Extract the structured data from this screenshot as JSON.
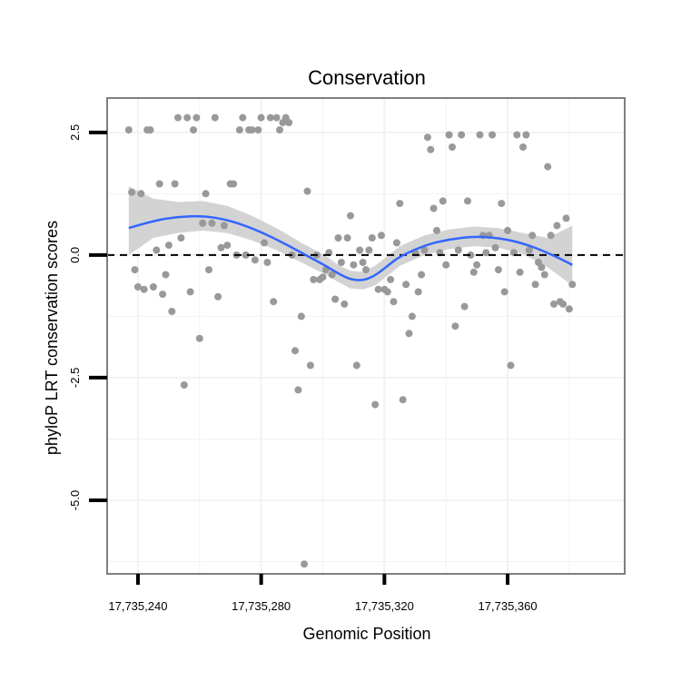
{
  "chart_data": {
    "type": "scatter",
    "title": "Conservation",
    "xlabel": "Genomic Position",
    "ylabel": "phyloP LRT conservation scores",
    "xlim": [
      17735230,
      17735398
    ],
    "ylim": [
      -6.5,
      3.2
    ],
    "x_ticks": [
      17735240,
      17735280,
      17735320,
      17735360
    ],
    "x_tick_labels": [
      "17,735,240",
      "17,735,280",
      "17,735,320",
      "17,735,360"
    ],
    "y_ticks": [
      2.5,
      0.0,
      -2.5,
      -5.0
    ],
    "y_tick_labels": [
      "2.5",
      "0.0",
      "-2.5",
      "-5.0"
    ],
    "reference_line_y": 0,
    "colors": {
      "points": "#999999",
      "smooth": "#3366ff",
      "band": "#d3d3d3",
      "panel_border": "#7f7f7f",
      "grid": "#f2f2f2"
    },
    "points": [
      {
        "x": 17735237,
        "y": 2.55
      },
      {
        "x": 17735238,
        "y": 1.28
      },
      {
        "x": 17735239,
        "y": -0.3
      },
      {
        "x": 17735240,
        "y": -0.65
      },
      {
        "x": 17735241,
        "y": 1.25
      },
      {
        "x": 17735242,
        "y": -0.7
      },
      {
        "x": 17735243,
        "y": 2.55
      },
      {
        "x": 17735244,
        "y": 2.55
      },
      {
        "x": 17735245,
        "y": -0.65
      },
      {
        "x": 17735246,
        "y": 0.1
      },
      {
        "x": 17735247,
        "y": 1.45
      },
      {
        "x": 17735248,
        "y": -0.8
      },
      {
        "x": 17735249,
        "y": -0.4
      },
      {
        "x": 17735250,
        "y": 0.2
      },
      {
        "x": 17735251,
        "y": -1.15
      },
      {
        "x": 17735252,
        "y": 1.45
      },
      {
        "x": 17735253,
        "y": 2.8
      },
      {
        "x": 17735254,
        "y": 0.35
      },
      {
        "x": 17735255,
        "y": -2.65
      },
      {
        "x": 17735256,
        "y": 2.8
      },
      {
        "x": 17735257,
        "y": -0.75
      },
      {
        "x": 17735258,
        "y": 2.55
      },
      {
        "x": 17735259,
        "y": 2.8
      },
      {
        "x": 17735260,
        "y": -1.7
      },
      {
        "x": 17735261,
        "y": 0.65
      },
      {
        "x": 17735262,
        "y": 1.25
      },
      {
        "x": 17735263,
        "y": -0.3
      },
      {
        "x": 17735264,
        "y": 0.65
      },
      {
        "x": 17735265,
        "y": 2.8
      },
      {
        "x": 17735266,
        "y": -0.85
      },
      {
        "x": 17735267,
        "y": 0.15
      },
      {
        "x": 17735268,
        "y": 0.6
      },
      {
        "x": 17735269,
        "y": 0.2
      },
      {
        "x": 17735270,
        "y": 1.45
      },
      {
        "x": 17735271,
        "y": 1.45
      },
      {
        "x": 17735272,
        "y": 0.0
      },
      {
        "x": 17735273,
        "y": 2.55
      },
      {
        "x": 17735274,
        "y": 2.8
      },
      {
        "x": 17735275,
        "y": 0.0
      },
      {
        "x": 17735276,
        "y": 2.55
      },
      {
        "x": 17735277,
        "y": 2.55
      },
      {
        "x": 17735278,
        "y": -0.1
      },
      {
        "x": 17735279,
        "y": 2.55
      },
      {
        "x": 17735280,
        "y": 2.8
      },
      {
        "x": 17735281,
        "y": 0.25
      },
      {
        "x": 17735282,
        "y": -0.15
      },
      {
        "x": 17735283,
        "y": 2.8
      },
      {
        "x": 17735284,
        "y": -0.95
      },
      {
        "x": 17735285,
        "y": 2.8
      },
      {
        "x": 17735286,
        "y": 2.55
      },
      {
        "x": 17735287,
        "y": 2.7
      },
      {
        "x": 17735288,
        "y": 2.8
      },
      {
        "x": 17735289,
        "y": 2.7
      },
      {
        "x": 17735290,
        "y": 0.0
      },
      {
        "x": 17735291,
        "y": -1.95
      },
      {
        "x": 17735292,
        "y": -2.75
      },
      {
        "x": 17735293,
        "y": -1.25
      },
      {
        "x": 17735294,
        "y": -6.3
      },
      {
        "x": 17735295,
        "y": 1.3
      },
      {
        "x": 17735296,
        "y": -2.25
      },
      {
        "x": 17735297,
        "y": -0.5
      },
      {
        "x": 17735298,
        "y": 0.0
      },
      {
        "x": 17735299,
        "y": -0.5
      },
      {
        "x": 17735300,
        "y": -0.45
      },
      {
        "x": 17735301,
        "y": -0.3
      },
      {
        "x": 17735302,
        "y": 0.05
      },
      {
        "x": 17735303,
        "y": -0.4
      },
      {
        "x": 17735304,
        "y": -0.9
      },
      {
        "x": 17735305,
        "y": 0.35
      },
      {
        "x": 17735306,
        "y": -0.15
      },
      {
        "x": 17735307,
        "y": -1.0
      },
      {
        "x": 17735308,
        "y": 0.35
      },
      {
        "x": 17735309,
        "y": 0.8
      },
      {
        "x": 17735310,
        "y": -0.2
      },
      {
        "x": 17735311,
        "y": -2.25
      },
      {
        "x": 17735312,
        "y": 0.1
      },
      {
        "x": 17735313,
        "y": -0.15
      },
      {
        "x": 17735314,
        "y": -0.3
      },
      {
        "x": 17735315,
        "y": 0.1
      },
      {
        "x": 17735316,
        "y": 0.35
      },
      {
        "x": 17735317,
        "y": -3.05
      },
      {
        "x": 17735318,
        "y": -0.7
      },
      {
        "x": 17735319,
        "y": 0.4
      },
      {
        "x": 17735320,
        "y": -0.7
      },
      {
        "x": 17735321,
        "y": -0.75
      },
      {
        "x": 17735322,
        "y": -0.5
      },
      {
        "x": 17735323,
        "y": -0.95
      },
      {
        "x": 17735324,
        "y": 0.25
      },
      {
        "x": 17735325,
        "y": 1.05
      },
      {
        "x": 17735326,
        "y": -2.95
      },
      {
        "x": 17735327,
        "y": -0.6
      },
      {
        "x": 17735328,
        "y": -1.6
      },
      {
        "x": 17735329,
        "y": -1.25
      },
      {
        "x": 17735330,
        "y": 0.05
      },
      {
        "x": 17735331,
        "y": -0.75
      },
      {
        "x": 17735332,
        "y": -0.4
      },
      {
        "x": 17735333,
        "y": 0.1
      },
      {
        "x": 17735334,
        "y": 2.4
      },
      {
        "x": 17735335,
        "y": 2.15
      },
      {
        "x": 17735336,
        "y": 0.95
      },
      {
        "x": 17735337,
        "y": 0.5
      },
      {
        "x": 17735338,
        "y": 0.05
      },
      {
        "x": 17735339,
        "y": 1.1
      },
      {
        "x": 17735340,
        "y": -0.2
      },
      {
        "x": 17735341,
        "y": 2.45
      },
      {
        "x": 17735342,
        "y": 2.2
      },
      {
        "x": 17735343,
        "y": -1.45
      },
      {
        "x": 17735344,
        "y": 0.1
      },
      {
        "x": 17735345,
        "y": 2.45
      },
      {
        "x": 17735346,
        "y": -1.05
      },
      {
        "x": 17735347,
        "y": 1.1
      },
      {
        "x": 17735348,
        "y": 0.0
      },
      {
        "x": 17735349,
        "y": -0.35
      },
      {
        "x": 17735350,
        "y": -0.2
      },
      {
        "x": 17735351,
        "y": 2.45
      },
      {
        "x": 17735352,
        "y": 0.4
      },
      {
        "x": 17735353,
        "y": 0.05
      },
      {
        "x": 17735354,
        "y": 0.4
      },
      {
        "x": 17735355,
        "y": 2.45
      },
      {
        "x": 17735356,
        "y": 0.15
      },
      {
        "x": 17735357,
        "y": -0.3
      },
      {
        "x": 17735358,
        "y": 1.05
      },
      {
        "x": 17735359,
        "y": -0.75
      },
      {
        "x": 17735360,
        "y": 0.5
      },
      {
        "x": 17735361,
        "y": -2.25
      },
      {
        "x": 17735362,
        "y": 0.05
      },
      {
        "x": 17735363,
        "y": 2.45
      },
      {
        "x": 17735364,
        "y": -0.35
      },
      {
        "x": 17735365,
        "y": 2.2
      },
      {
        "x": 17735366,
        "y": 2.45
      },
      {
        "x": 17735367,
        "y": 0.1
      },
      {
        "x": 17735368,
        "y": 0.4
      },
      {
        "x": 17735369,
        "y": -0.6
      },
      {
        "x": 17735370,
        "y": -0.15
      },
      {
        "x": 17735371,
        "y": -0.25
      },
      {
        "x": 17735372,
        "y": -0.4
      },
      {
        "x": 17735373,
        "y": 1.8
      },
      {
        "x": 17735374,
        "y": 0.4
      },
      {
        "x": 17735375,
        "y": -1.0
      },
      {
        "x": 17735376,
        "y": 0.6
      },
      {
        "x": 17735377,
        "y": -0.95
      },
      {
        "x": 17735378,
        "y": -1.0
      },
      {
        "x": 17735379,
        "y": 0.75
      },
      {
        "x": 17735380,
        "y": -1.1
      },
      {
        "x": 17735381,
        "y": -0.6
      }
    ],
    "smooth_line": {
      "x": [
        17735237,
        17735245,
        17735253,
        17735261,
        17735269,
        17735277,
        17735285,
        17735293,
        17735301,
        17735305,
        17735309,
        17735313,
        17735317,
        17735321,
        17735325,
        17735333,
        17735341,
        17735349,
        17735357,
        17735365,
        17735373,
        17735381
      ],
      "y": [
        0.55,
        0.7,
        0.78,
        0.8,
        0.72,
        0.55,
        0.32,
        0.05,
        -0.22,
        -0.38,
        -0.5,
        -0.52,
        -0.42,
        -0.22,
        -0.03,
        0.2,
        0.32,
        0.38,
        0.35,
        0.24,
        0.05,
        -0.2
      ],
      "lower": [
        0.0,
        0.35,
        0.45,
        0.5,
        0.45,
        0.3,
        0.1,
        -0.15,
        -0.4,
        -0.55,
        -0.68,
        -0.7,
        -0.62,
        -0.42,
        -0.22,
        0.0,
        0.12,
        0.18,
        0.15,
        0.02,
        -0.25,
        -0.62
      ],
      "upper": [
        1.4,
        1.15,
        1.08,
        1.1,
        1.0,
        0.8,
        0.55,
        0.25,
        -0.02,
        -0.2,
        -0.32,
        -0.34,
        -0.22,
        -0.02,
        0.18,
        0.4,
        0.52,
        0.58,
        0.55,
        0.45,
        0.35,
        0.6
      ]
    }
  }
}
